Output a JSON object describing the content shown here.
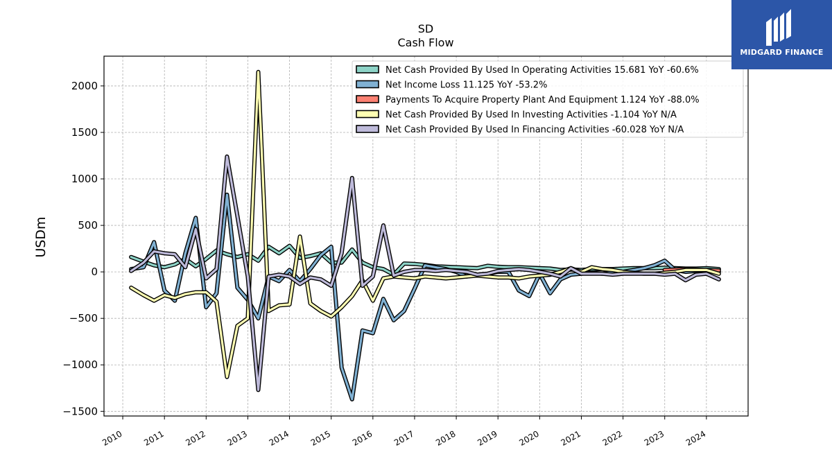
{
  "chart_data": {
    "type": "line",
    "title": "SD",
    "subtitle": "Cash Flow",
    "ylabel": "USDm",
    "xlabel": "",
    "ylim": [
      -1550,
      2320
    ],
    "xlim": [
      2009.55,
      2025.0
    ],
    "grid": true,
    "legend_position": "top-right",
    "y_ticks": [
      -1500,
      -1000,
      -500,
      0,
      500,
      1000,
      1500,
      2000
    ],
    "y_tick_labels": [
      "−1500",
      "−1000",
      "−500",
      "0",
      "500",
      "1000",
      "1500",
      "2000"
    ],
    "x_ticks": [
      2010,
      2011,
      2012,
      2013,
      2014,
      2015,
      2016,
      2017,
      2018,
      2019,
      2020,
      2021,
      2022,
      2023,
      2024
    ],
    "x_tick_labels": [
      "2010",
      "2011",
      "2012",
      "2013",
      "2014",
      "2015",
      "2016",
      "2017",
      "2018",
      "2019",
      "2020",
      "2021",
      "2022",
      "2023",
      "2024"
    ],
    "series": [
      {
        "name": "Net Cash Provided By Used In Operating Activities",
        "legend": "Net Cash Provided By Used In Operating Activities  15.681 YoY -60.6%",
        "color": "#8dd3c7",
        "x": [
          2010.2,
          2010.5,
          2010.75,
          2011.0,
          2011.25,
          2011.5,
          2011.75,
          2012.0,
          2012.25,
          2012.5,
          2012.75,
          2013.0,
          2013.25,
          2013.5,
          2013.75,
          2014.0,
          2014.25,
          2014.5,
          2014.75,
          2015.0,
          2015.25,
          2015.5,
          2015.75,
          2016.0,
          2016.25,
          2016.5,
          2016.75,
          2017.0,
          2017.25,
          2017.5,
          2017.75,
          2018.0,
          2018.25,
          2018.5,
          2018.75,
          2019.0,
          2019.25,
          2019.5,
          2019.75,
          2020.0,
          2020.25,
          2020.5,
          2020.75,
          2021.0,
          2021.25,
          2021.5,
          2021.75,
          2022.0,
          2022.25,
          2022.5,
          2022.75,
          2023.0,
          2023.25,
          2023.5,
          2023.75,
          2024.0,
          2024.3
        ],
        "values": [
          160,
          110,
          70,
          50,
          80,
          140,
          60,
          140,
          230,
          190,
          160,
          190,
          120,
          270,
          200,
          280,
          150,
          170,
          200,
          100,
          100,
          240,
          100,
          50,
          30,
          -30,
          90,
          85,
          75,
          60,
          55,
          50,
          45,
          40,
          65,
          55,
          50,
          50,
          45,
          40,
          35,
          20,
          25,
          20,
          30,
          30,
          30,
          35,
          40,
          40,
          40,
          45,
          40,
          35,
          35,
          40,
          30
        ]
      },
      {
        "name": "Net Income Loss",
        "legend": "Net Income Loss  11.125 YoY -53.2%",
        "color": "#80b1d3",
        "x": [
          2010.2,
          2010.5,
          2010.75,
          2011.0,
          2011.25,
          2011.5,
          2011.75,
          2012.0,
          2012.25,
          2012.5,
          2012.75,
          2013.0,
          2013.25,
          2013.5,
          2013.75,
          2014.0,
          2014.25,
          2014.5,
          2014.75,
          2015.0,
          2015.25,
          2015.5,
          2015.75,
          2016.0,
          2016.25,
          2016.5,
          2016.75,
          2017.0,
          2017.25,
          2017.5,
          2017.75,
          2018.0,
          2018.25,
          2018.5,
          2018.75,
          2019.0,
          2019.25,
          2019.5,
          2019.75,
          2020.0,
          2020.25,
          2020.5,
          2020.75,
          2021.0,
          2021.25,
          2021.5,
          2021.75,
          2022.0,
          2022.25,
          2022.5,
          2022.75,
          2023.0,
          2023.25,
          2023.5,
          2023.75,
          2024.0,
          2024.3
        ],
        "values": [
          30,
          50,
          320,
          -200,
          -310,
          200,
          580,
          -380,
          -230,
          830,
          -170,
          -300,
          -500,
          -50,
          -100,
          20,
          -100,
          30,
          180,
          270,
          -1030,
          -1370,
          -630,
          -660,
          -290,
          -520,
          -420,
          -180,
          70,
          50,
          30,
          0,
          -50,
          -30,
          -20,
          0,
          0,
          -200,
          -260,
          -20,
          -230,
          -80,
          -30,
          -20,
          -10,
          -20,
          -5,
          0,
          20,
          40,
          70,
          120,
          20,
          0,
          10,
          20,
          0
        ]
      },
      {
        "name": "Payments To Acquire Property Plant And Equipment",
        "legend": "Payments To Acquire Property Plant And Equipment  1.124 YoY -88.0%",
        "color": "#fb8072",
        "x": [
          2023.0,
          2023.25,
          2023.5,
          2023.75,
          2024.0,
          2024.3
        ],
        "values": [
          20,
          25,
          30,
          25,
          20,
          15
        ]
      },
      {
        "name": "Net Cash Provided By Used In Investing Activities",
        "legend": "Net Cash Provided By Used In Investing Activities  -1.104 YoY N/A",
        "color": "#ffffb3",
        "x": [
          2010.2,
          2010.5,
          2010.75,
          2011.0,
          2011.25,
          2011.5,
          2011.75,
          2012.0,
          2012.25,
          2012.5,
          2012.75,
          2013.0,
          2013.25,
          2013.5,
          2013.75,
          2014.0,
          2014.25,
          2014.5,
          2014.75,
          2015.0,
          2015.25,
          2015.5,
          2015.75,
          2016.0,
          2016.25,
          2016.5,
          2016.75,
          2017.0,
          2017.25,
          2017.5,
          2017.75,
          2018.0,
          2018.25,
          2018.5,
          2018.75,
          2019.0,
          2019.25,
          2019.5,
          2019.75,
          2020.0,
          2020.25,
          2020.5,
          2020.75,
          2021.0,
          2021.25,
          2021.5,
          2021.75,
          2022.0,
          2022.25,
          2022.5,
          2022.75,
          2023.0,
          2023.25,
          2023.5,
          2023.75,
          2024.0,
          2024.3
        ],
        "values": [
          -170,
          -250,
          -310,
          -250,
          -280,
          -240,
          -220,
          -220,
          -320,
          -1130,
          -580,
          -500,
          2150,
          -420,
          -360,
          -350,
          380,
          -340,
          -420,
          -480,
          -380,
          -260,
          -90,
          -310,
          -70,
          -50,
          -60,
          -70,
          -50,
          -60,
          -70,
          -60,
          -50,
          -40,
          -50,
          -60,
          -60,
          -70,
          -50,
          -40,
          -30,
          0,
          40,
          0,
          50,
          30,
          20,
          0,
          -10,
          -20,
          -20,
          -10,
          0,
          20,
          20,
          20,
          -20
        ]
      },
      {
        "name": "Net Cash Provided By Used In Financing Activities",
        "legend": "Net Cash Provided By Used In Financing Activities  -60.028 YoY N/A",
        "color": "#bebada",
        "x": [
          2010.2,
          2010.5,
          2010.75,
          2011.0,
          2011.25,
          2011.5,
          2011.75,
          2012.0,
          2012.25,
          2012.5,
          2012.75,
          2013.0,
          2013.25,
          2013.5,
          2013.75,
          2014.0,
          2014.25,
          2014.5,
          2014.75,
          2015.0,
          2015.25,
          2015.5,
          2015.75,
          2016.0,
          2016.25,
          2016.5,
          2016.75,
          2017.0,
          2017.25,
          2017.5,
          2017.75,
          2018.0,
          2018.25,
          2018.5,
          2018.75,
          2019.0,
          2019.25,
          2019.5,
          2019.75,
          2020.0,
          2020.25,
          2020.5,
          2020.75,
          2021.0,
          2021.25,
          2021.5,
          2021.75,
          2022.0,
          2022.25,
          2022.5,
          2022.75,
          2023.0,
          2023.25,
          2023.5,
          2023.75,
          2024.0,
          2024.3
        ],
        "values": [
          10,
          100,
          220,
          200,
          190,
          50,
          460,
          -70,
          30,
          1240,
          600,
          -50,
          -1270,
          -50,
          -30,
          -50,
          -130,
          -60,
          -80,
          -150,
          200,
          1010,
          -150,
          -50,
          500,
          -40,
          0,
          20,
          20,
          10,
          20,
          10,
          0,
          -30,
          -20,
          10,
          20,
          30,
          20,
          0,
          -20,
          -50,
          40,
          -20,
          -20,
          -20,
          -30,
          -20,
          -20,
          -20,
          -20,
          -30,
          -20,
          -90,
          -30,
          -20,
          -80
        ]
      }
    ]
  },
  "logo": {
    "text": "MIDGARD FINANCE",
    "background": "#2c56a8"
  }
}
